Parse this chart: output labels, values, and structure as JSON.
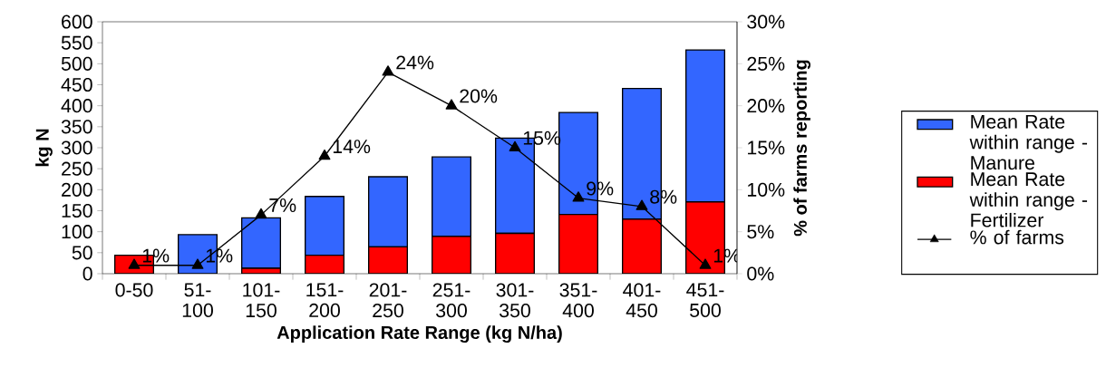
{
  "chart_data": {
    "type": "bar",
    "stacked": true,
    "xlabel": "Application Rate Range (kg N/ha)",
    "ylabel": "kg N",
    "y2label": "% of farms reporting",
    "categories": [
      "0-50",
      "51-100",
      "101-150",
      "151-200",
      "201-250",
      "251-300",
      "301-350",
      "351-400",
      "401-450",
      "451-500"
    ],
    "ylim": [
      0,
      600
    ],
    "yticks": [
      0,
      50,
      100,
      150,
      200,
      250,
      300,
      350,
      400,
      450,
      500,
      550,
      600
    ],
    "y2lim": [
      0,
      30
    ],
    "y2ticks": [
      {
        "value": 0,
        "label": "0%"
      },
      {
        "value": 5,
        "label": "5%"
      },
      {
        "value": 10,
        "label": "10%"
      },
      {
        "value": 15,
        "label": "15%"
      },
      {
        "value": 20,
        "label": "20%"
      },
      {
        "value": 25,
        "label": "25%"
      },
      {
        "value": 30,
        "label": "30%"
      }
    ],
    "legend": "right",
    "grid": false,
    "series": [
      {
        "name": "Mean Rate within range - Fertilizer",
        "color": "#ff0000",
        "values": [
          44,
          0,
          13,
          44,
          64,
          89,
          96,
          141,
          130,
          171
        ]
      },
      {
        "name": "Mean Rate within range - Manure",
        "color": "#3366ff",
        "values": [
          0,
          93,
          120,
          140,
          167,
          189,
          227,
          243,
          311,
          362
        ]
      },
      {
        "name": "% of farms",
        "type": "line",
        "axis": "y2",
        "color": "#000000",
        "marker": "triangle",
        "values": [
          1,
          1,
          7,
          14,
          24,
          20,
          15,
          9,
          8,
          1
        ],
        "value_labels": [
          "1%",
          "1%",
          "7%",
          "14%",
          "24%",
          "20%",
          "15%",
          "9%",
          "8%",
          "1%"
        ]
      }
    ]
  }
}
